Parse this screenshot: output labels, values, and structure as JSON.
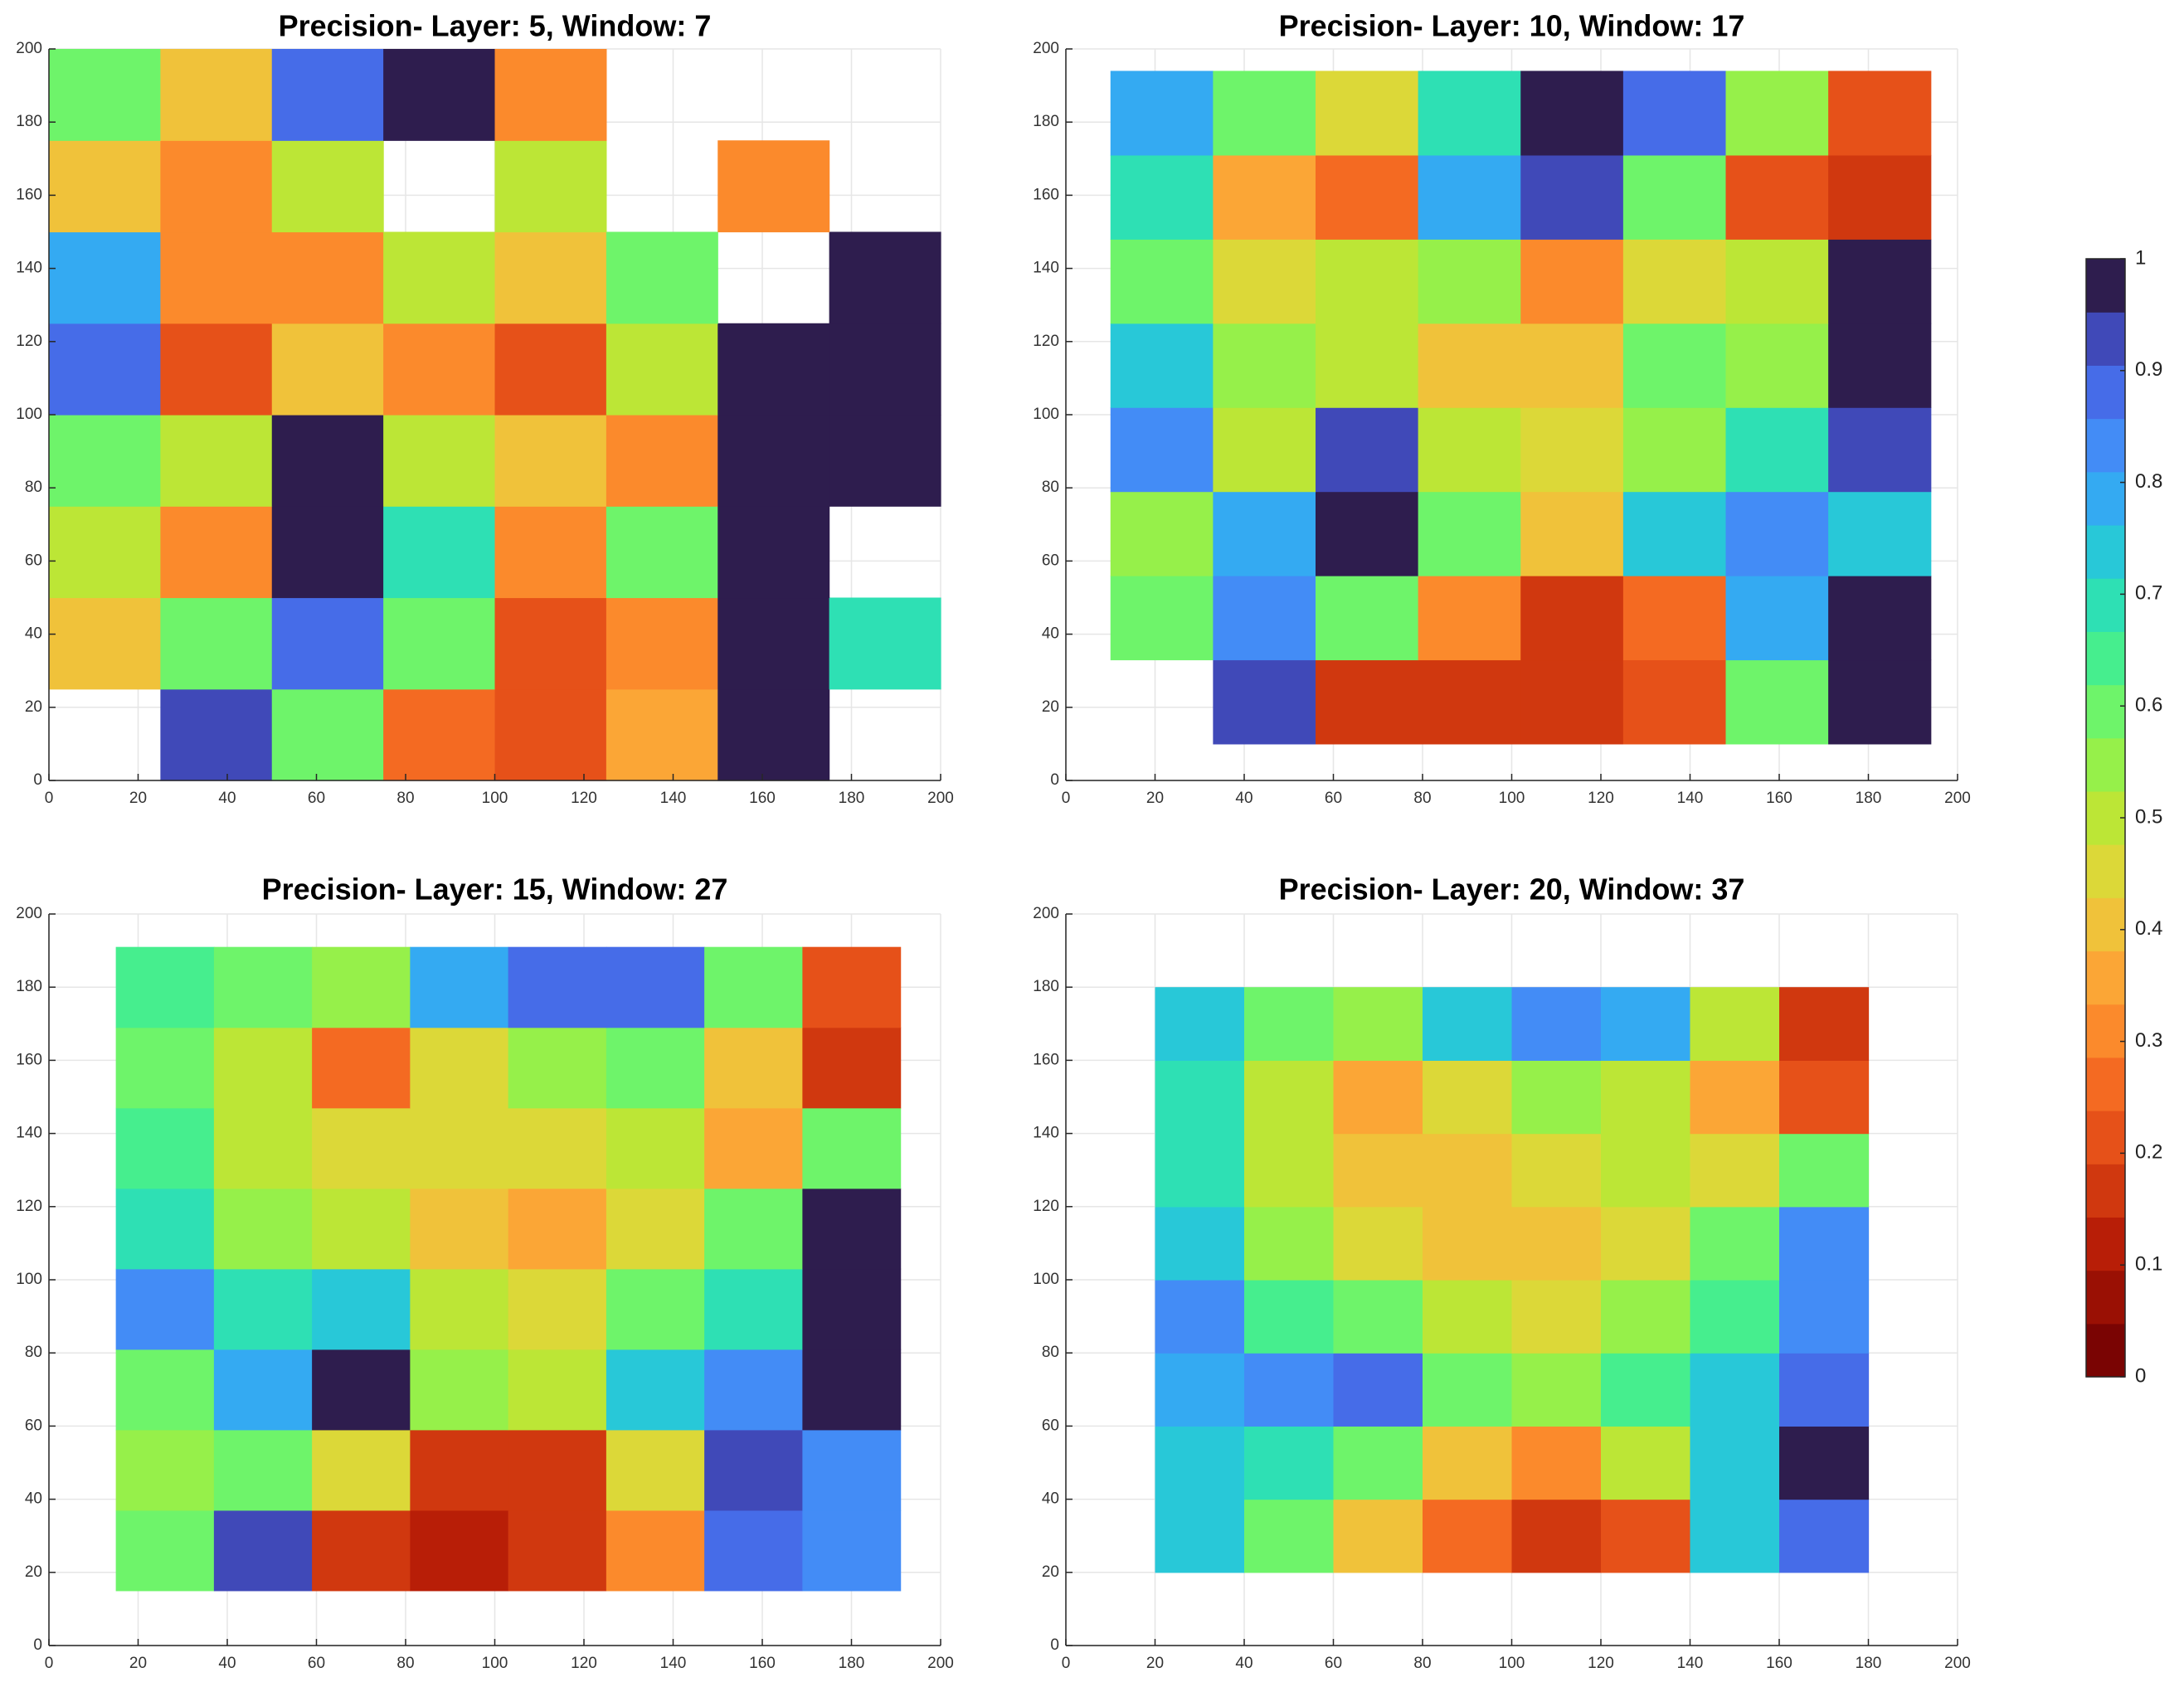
{
  "chart_data": [
    {
      "type": "heatmap",
      "title": "Precision- Layer: 5, Window: 7",
      "x": [
        12.5,
        37.5,
        62.5,
        87.5,
        112.5,
        137.5,
        162.5,
        187.5
      ],
      "y": [
        12.5,
        37.5,
        62.5,
        87.5,
        112.5,
        137.5,
        162.5,
        187.5
      ],
      "z": [
        [
          null,
          0.95,
          0.6,
          0.25,
          0.2,
          0.35,
          1,
          null
        ],
        [
          0.4,
          0.6,
          0.9,
          0.6,
          0.2,
          0.3,
          1,
          0.7
        ],
        [
          0.5,
          0.3,
          1,
          0.7,
          0.3,
          0.6,
          1,
          null
        ],
        [
          0.6,
          0.5,
          1,
          0.5,
          0.4,
          0.3,
          1,
          1
        ],
        [
          0.9,
          0.2,
          0.4,
          0.3,
          0.2,
          0.5,
          1,
          1
        ],
        [
          0.8,
          0.3,
          0.3,
          0.5,
          0.4,
          0.6,
          null,
          1
        ],
        [
          0.4,
          0.3,
          0.5,
          null,
          0.5,
          null,
          0.3,
          null
        ],
        [
          0.6,
          0.4,
          0.9,
          1,
          0.3,
          null,
          null,
          null
        ]
      ],
      "xlim": [
        0,
        200
      ],
      "ylim": [
        0,
        200
      ],
      "xticks": [
        0,
        20,
        40,
        60,
        80,
        100,
        120,
        140,
        160,
        180,
        200
      ],
      "yticks": [
        0,
        20,
        40,
        60,
        80,
        100,
        120,
        140,
        160,
        180,
        200
      ],
      "grid": true
    },
    {
      "type": "heatmap",
      "title": "Precision- Layer: 10, Window: 17",
      "x": [
        21.5,
        44.5,
        67.5,
        90.5,
        113.5,
        136.5,
        159.5,
        182.5
      ],
      "y": [
        21.5,
        44.5,
        67.5,
        90.5,
        113.5,
        136.5,
        159.5,
        182.5
      ],
      "z": [
        [
          null,
          0.95,
          0.15,
          0.15,
          0.15,
          0.2,
          0.6,
          1
        ],
        [
          0.6,
          0.85,
          0.6,
          0.3,
          0.15,
          0.25,
          0.8,
          1
        ],
        [
          0.55,
          0.8,
          1,
          0.6,
          0.4,
          0.75,
          0.85,
          0.75
        ],
        [
          0.85,
          0.5,
          0.95,
          0.5,
          0.45,
          0.55,
          0.7,
          0.95
        ],
        [
          0.75,
          0.55,
          0.5,
          0.4,
          0.4,
          0.6,
          0.55,
          1
        ],
        [
          0.6,
          0.45,
          0.5,
          0.55,
          0.3,
          0.45,
          0.5,
          1
        ],
        [
          0.7,
          0.35,
          0.25,
          0.8,
          0.95,
          0.6,
          0.2,
          0.15
        ],
        [
          0.8,
          0.6,
          0.45,
          0.7,
          1,
          0.9,
          0.55,
          0.2
        ]
      ],
      "xlim": [
        0,
        200
      ],
      "ylim": [
        0,
        200
      ],
      "xticks": [
        0,
        20,
        40,
        60,
        80,
        100,
        120,
        140,
        160,
        180,
        200
      ],
      "yticks": [
        0,
        20,
        40,
        60,
        80,
        100,
        120,
        140,
        160,
        180,
        200
      ],
      "grid": true
    },
    {
      "type": "heatmap",
      "title": "Precision- Layer: 15, Window: 27",
      "x": [
        26,
        48,
        70,
        92,
        114,
        136,
        158,
        180
      ],
      "y": [
        26,
        48,
        70,
        92,
        114,
        136,
        158,
        180
      ],
      "z": [
        [
          0.6,
          0.95,
          0.15,
          0.1,
          0.15,
          0.3,
          0.9,
          0.85
        ],
        [
          0.55,
          0.6,
          0.45,
          0.15,
          0.15,
          0.45,
          0.95,
          0.85
        ],
        [
          0.6,
          0.8,
          1,
          0.55,
          0.5,
          0.75,
          0.85,
          1
        ],
        [
          0.85,
          0.7,
          0.75,
          0.5,
          0.45,
          0.6,
          0.7,
          1
        ],
        [
          0.7,
          0.55,
          0.5,
          0.4,
          0.35,
          0.45,
          0.6,
          1
        ],
        [
          0.65,
          0.5,
          0.45,
          0.45,
          0.45,
          0.5,
          0.35,
          0.6
        ],
        [
          0.6,
          0.5,
          0.25,
          0.45,
          0.55,
          0.6,
          0.4,
          0.15
        ],
        [
          0.65,
          0.6,
          0.55,
          0.8,
          0.9,
          0.9,
          0.6,
          0.2
        ]
      ],
      "xlim": [
        0,
        200
      ],
      "ylim": [
        0,
        200
      ],
      "xticks": [
        0,
        20,
        40,
        60,
        80,
        100,
        120,
        140,
        160,
        180,
        200
      ],
      "yticks": [
        0,
        20,
        40,
        60,
        80,
        100,
        120,
        140,
        160,
        180,
        200
      ],
      "grid": true
    },
    {
      "type": "heatmap",
      "title": "Precision- Layer: 20, Window: 37",
      "x": [
        30,
        50,
        70,
        90,
        110,
        130,
        150,
        170
      ],
      "y": [
        30,
        50,
        70,
        90,
        110,
        130,
        150,
        170
      ],
      "z": [
        [
          0.75,
          0.6,
          0.4,
          0.25,
          0.15,
          0.2,
          0.75,
          0.9
        ],
        [
          0.75,
          0.7,
          0.6,
          0.4,
          0.3,
          0.5,
          0.75,
          1
        ],
        [
          0.8,
          0.85,
          0.9,
          0.6,
          0.55,
          0.65,
          0.75,
          0.9
        ],
        [
          0.85,
          0.65,
          0.6,
          0.5,
          0.45,
          0.55,
          0.65,
          0.85
        ],
        [
          0.75,
          0.55,
          0.45,
          0.4,
          0.4,
          0.45,
          0.6,
          0.85
        ],
        [
          0.7,
          0.5,
          0.4,
          0.4,
          0.45,
          0.5,
          0.45,
          0.6
        ],
        [
          0.7,
          0.5,
          0.35,
          0.45,
          0.55,
          0.5,
          0.35,
          0.2
        ],
        [
          0.75,
          0.6,
          0.55,
          0.75,
          0.85,
          0.8,
          0.5,
          0.15
        ]
      ],
      "xlim": [
        0,
        200
      ],
      "ylim": [
        0,
        200
      ],
      "xticks": [
        0,
        20,
        40,
        60,
        80,
        100,
        120,
        140,
        160,
        180,
        200
      ],
      "yticks": [
        0,
        20,
        40,
        60,
        80,
        100,
        120,
        140,
        160,
        180,
        200
      ],
      "grid": true
    }
  ],
  "colorbar": {
    "lim": [
      0,
      1
    ],
    "ticks": [
      0,
      0.1,
      0.2,
      0.3,
      0.4,
      0.5,
      0.6,
      0.7,
      0.8,
      0.9,
      1
    ],
    "colors": [
      "#7a0403",
      "#9a1004",
      "#b81e07",
      "#d0380f",
      "#e65119",
      "#f46a22",
      "#fb8a2c",
      "#fba636",
      "#f0c23a",
      "#dcd838",
      "#bce636",
      "#96f04a",
      "#6ef46a",
      "#46ee8e",
      "#2ee0b4",
      "#28c8d8",
      "#34aaf2",
      "#438cf6",
      "#466ce8",
      "#4049b8",
      "#2e1d4e"
    ]
  }
}
